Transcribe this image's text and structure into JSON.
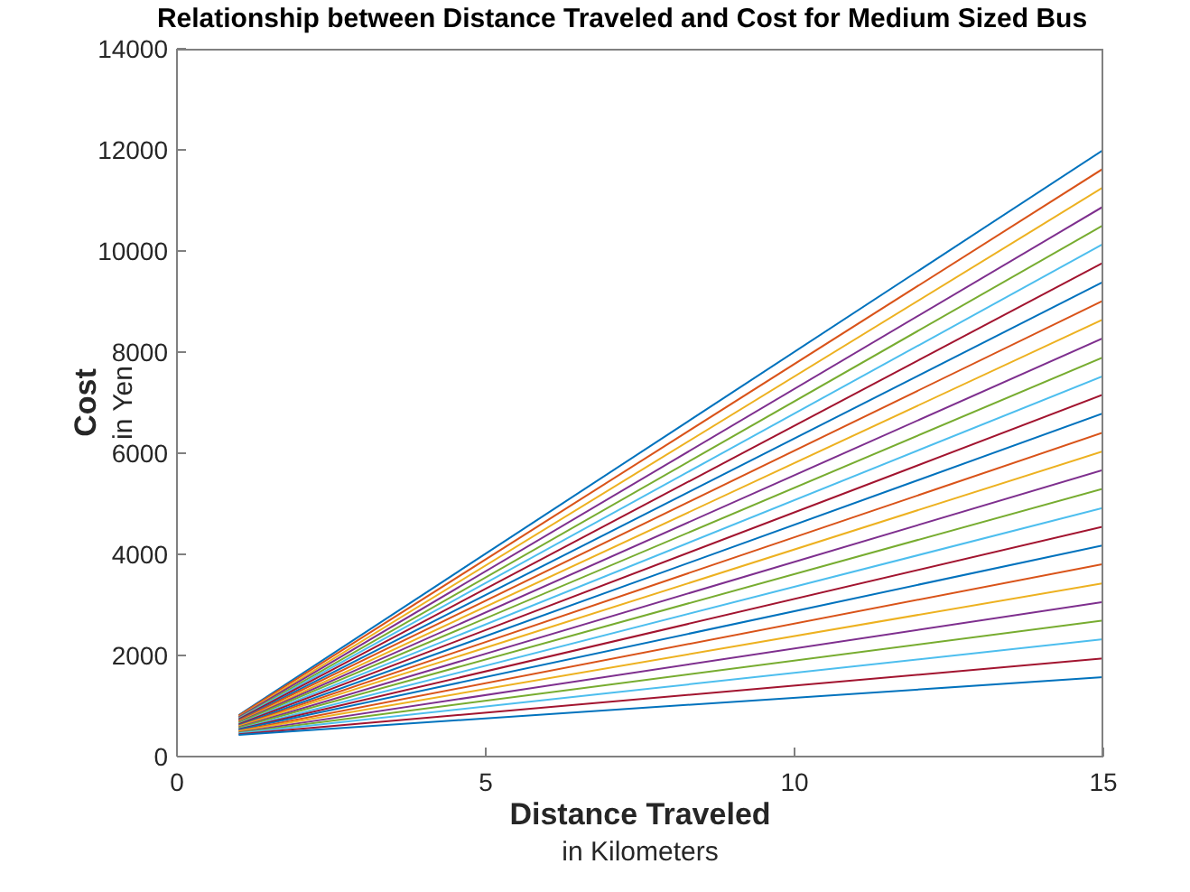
{
  "chart_data": {
    "type": "line",
    "title": "Relationship between Distance Traveled and Cost for Medium Sized Bus",
    "xlabel": "Distance Traveled\nin Kilometers",
    "ylabel": "Cost\nin Yen",
    "xlim": [
      0,
      15
    ],
    "xticks": [
      0,
      5,
      10,
      15
    ],
    "ylim": [
      0,
      14000
    ],
    "yticks": [
      0,
      2000,
      4000,
      6000,
      8000,
      10000,
      12000,
      14000
    ],
    "line_style": "solid",
    "x": [
      1,
      15
    ],
    "series": [
      {
        "color": "#0072bd",
        "values": [
          820,
          12000
        ]
      },
      {
        "color": "#d95319",
        "values": [
          810,
          11630
        ]
      },
      {
        "color": "#edb120",
        "values": [
          790,
          11260
        ]
      },
      {
        "color": "#7e2f8e",
        "values": [
          780,
          10880
        ]
      },
      {
        "color": "#77ac30",
        "values": [
          760,
          10510
        ]
      },
      {
        "color": "#4dbeee",
        "values": [
          750,
          10140
        ]
      },
      {
        "color": "#a2142f",
        "values": [
          740,
          9770
        ]
      },
      {
        "color": "#0072bd",
        "values": [
          720,
          9390
        ]
      },
      {
        "color": "#d95319",
        "values": [
          710,
          9020
        ]
      },
      {
        "color": "#edb120",
        "values": [
          690,
          8650
        ]
      },
      {
        "color": "#7e2f8e",
        "values": [
          680,
          8280
        ]
      },
      {
        "color": "#77ac30",
        "values": [
          670,
          7900
        ]
      },
      {
        "color": "#4dbeee",
        "values": [
          650,
          7530
        ]
      },
      {
        "color": "#a2142f",
        "values": [
          640,
          7160
        ]
      },
      {
        "color": "#0072bd",
        "values": [
          620,
          6790
        ]
      },
      {
        "color": "#d95319",
        "values": [
          610,
          6410
        ]
      },
      {
        "color": "#edb120",
        "values": [
          600,
          6040
        ]
      },
      {
        "color": "#7e2f8e",
        "values": [
          580,
          5670
        ]
      },
      {
        "color": "#77ac30",
        "values": [
          570,
          5300
        ]
      },
      {
        "color": "#4dbeee",
        "values": [
          550,
          4920
        ]
      },
      {
        "color": "#a2142f",
        "values": [
          540,
          4550
        ]
      },
      {
        "color": "#0072bd",
        "values": [
          530,
          4180
        ]
      },
      {
        "color": "#d95319",
        "values": [
          510,
          3810
        ]
      },
      {
        "color": "#edb120",
        "values": [
          500,
          3430
        ]
      },
      {
        "color": "#7e2f8e",
        "values": [
          480,
          3060
        ]
      },
      {
        "color": "#77ac30",
        "values": [
          470,
          2690
        ]
      },
      {
        "color": "#4dbeee",
        "values": [
          460,
          2320
        ]
      },
      {
        "color": "#a2142f",
        "values": [
          440,
          1940
        ]
      },
      {
        "color": "#0072bd",
        "values": [
          430,
          1570
        ]
      }
    ]
  }
}
